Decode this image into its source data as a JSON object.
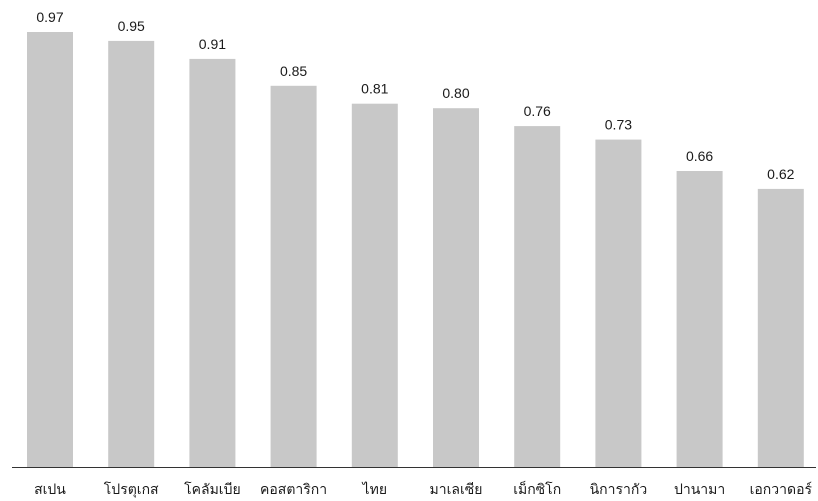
{
  "chart_data": {
    "type": "bar",
    "categories": [
      "สเปน",
      "โปรตุเกส",
      "โคลัมเบีย",
      "คอสตาริกา",
      "ไทย",
      "มาเลเซีย",
      "เม็กซิโก",
      "นิการากัว",
      "ปานามา",
      "เอกวาดอร์"
    ],
    "values": [
      0.97,
      0.95,
      0.91,
      0.85,
      0.81,
      0.8,
      0.76,
      0.73,
      0.66,
      0.62
    ],
    "value_labels": [
      "0.97",
      "0.95",
      "0.91",
      "0.85",
      "0.81",
      "0.80",
      "0.76",
      "0.73",
      "0.66",
      "0.62"
    ],
    "title": "",
    "xlabel": "",
    "ylabel": "",
    "ylim": [
      0,
      1
    ],
    "grid": false,
    "bar_color": "#c8c8c8"
  }
}
